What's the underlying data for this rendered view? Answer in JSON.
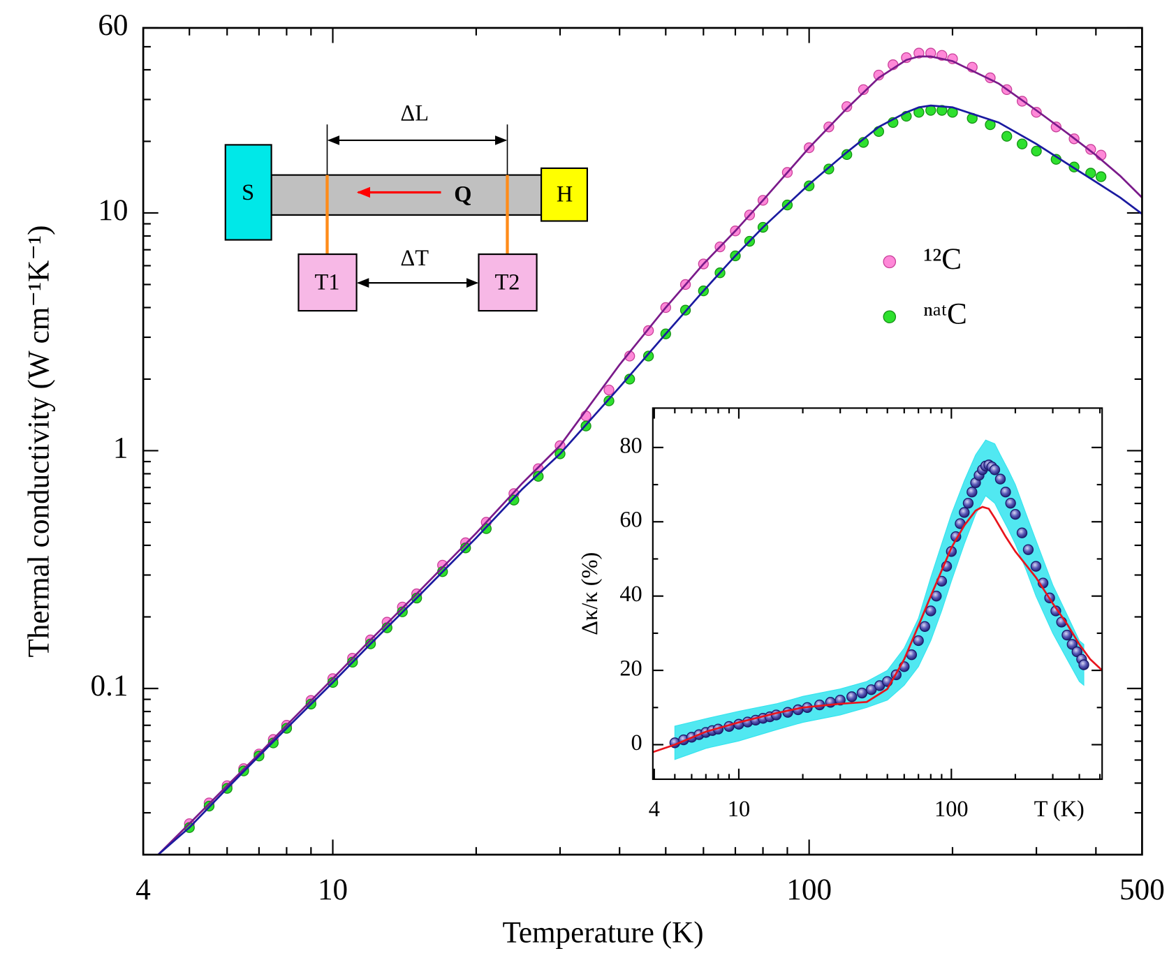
{
  "chart_data": [
    {
      "type": "scatter",
      "xlabel": "Temperature (K)",
      "ylabel": "Thermal conductivity (W cm⁻¹K⁻¹)",
      "xscale": "log",
      "yscale": "log",
      "xlim": [
        4,
        500
      ],
      "ylim": [
        0.02,
        60
      ],
      "xticks": [
        4,
        10,
        100,
        500
      ],
      "xminorticks": [
        5,
        6,
        7,
        8,
        9,
        20,
        30,
        40,
        50,
        60,
        70,
        80,
        90,
        200,
        300,
        400
      ],
      "yticks": [
        0.1,
        1,
        10,
        60
      ],
      "yminorticks": [
        0.03,
        0.04,
        0.05,
        0.06,
        0.07,
        0.08,
        0.09,
        0.2,
        0.3,
        0.4,
        0.5,
        0.6,
        0.7,
        0.8,
        0.9,
        2,
        3,
        4,
        5,
        6,
        7,
        8,
        9,
        20,
        30,
        40,
        50
      ],
      "legend": "upper right",
      "series": [
        {
          "name": "¹²C",
          "kind": "markers",
          "color": "#ff88d8",
          "edge": "#c8409a",
          "x": [
            5,
            5.5,
            6,
            6.5,
            7,
            7.5,
            8,
            9,
            10,
            11,
            12,
            13,
            14,
            15,
            17,
            19,
            21,
            24,
            27,
            30,
            34,
            38,
            42,
            46,
            50,
            55,
            60,
            65,
            70,
            75,
            80,
            90,
            100,
            110,
            120,
            130,
            140,
            150,
            160,
            170,
            180,
            190,
            200,
            220,
            240,
            260,
            280,
            300,
            330,
            360,
            390,
            410
          ],
          "values": [
            0.027,
            0.033,
            0.039,
            0.046,
            0.053,
            0.061,
            0.07,
            0.089,
            0.11,
            0.134,
            0.16,
            0.19,
            0.22,
            0.25,
            0.33,
            0.41,
            0.5,
            0.66,
            0.84,
            1.05,
            1.4,
            1.8,
            2.5,
            3.2,
            4.0,
            5.0,
            6.1,
            7.2,
            8.4,
            9.8,
            11.3,
            14.8,
            18.8,
            23,
            28,
            33,
            38,
            42,
            45,
            47,
            47,
            46,
            44.5,
            41,
            37,
            33,
            29.5,
            26.5,
            23,
            20.5,
            18.5,
            17.5
          ]
        },
        {
          "name": "ⁿᵃᵗC",
          "kind": "markers",
          "color": "#2ee02e",
          "edge": "#149014",
          "x": [
            5,
            5.5,
            6,
            6.5,
            7,
            7.5,
            8,
            9,
            10,
            11,
            12,
            13,
            14,
            15,
            17,
            19,
            21,
            24,
            27,
            30,
            34,
            38,
            42,
            46,
            50,
            55,
            60,
            65,
            70,
            75,
            80,
            90,
            100,
            110,
            120,
            130,
            140,
            150,
            160,
            170,
            180,
            190,
            200,
            220,
            240,
            260,
            280,
            300,
            330,
            360,
            390,
            410
          ],
          "values": [
            0.026,
            0.032,
            0.038,
            0.045,
            0.052,
            0.059,
            0.068,
            0.086,
            0.106,
            0.129,
            0.154,
            0.18,
            0.21,
            0.24,
            0.31,
            0.39,
            0.47,
            0.62,
            0.78,
            0.97,
            1.27,
            1.62,
            2.0,
            2.5,
            3.1,
            3.9,
            4.7,
            5.6,
            6.6,
            7.6,
            8.7,
            10.8,
            13,
            15.3,
            17.6,
            19.8,
            22,
            24,
            25.5,
            26.5,
            27,
            27,
            26.5,
            25,
            23.5,
            21,
            19.5,
            18.2,
            16.8,
            15.6,
            14.7,
            14.2
          ]
        },
        {
          "kind": "line",
          "color": "#7a1a8a",
          "x": [
            4.3,
            5,
            6,
            7,
            8,
            10,
            12,
            15,
            20,
            25,
            30,
            40,
            50,
            60,
            70,
            80,
            100,
            120,
            140,
            160,
            170,
            180,
            200,
            250,
            300,
            350,
            400,
            450,
            500
          ],
          "values": [
            0.02,
            0.027,
            0.039,
            0.053,
            0.07,
            0.11,
            0.16,
            0.25,
            0.45,
            0.73,
            1.05,
            2.3,
            4.0,
            6.1,
            8.4,
            11.3,
            18.8,
            27.5,
            37,
            44,
            45.5,
            45.5,
            43.5,
            35,
            27,
            21.5,
            17.5,
            14.3,
            11.6
          ]
        },
        {
          "kind": "line",
          "color": "#1a1aa0",
          "x": [
            4.3,
            5,
            6,
            7,
            8,
            10,
            12,
            15,
            20,
            25,
            30,
            40,
            50,
            60,
            70,
            80,
            100,
            120,
            140,
            160,
            170,
            180,
            200,
            250,
            300,
            350,
            400,
            450,
            500
          ],
          "values": [
            0.02,
            0.026,
            0.038,
            0.052,
            0.068,
            0.106,
            0.154,
            0.24,
            0.43,
            0.69,
            0.97,
            1.85,
            3.1,
            4.7,
            6.6,
            8.7,
            13.2,
            18,
            23,
            26.5,
            27.8,
            28.3,
            27.8,
            24,
            19.5,
            16,
            13.5,
            11.6,
            9.9
          ]
        }
      ]
    },
    {
      "type": "scatter",
      "xlabel": "T (K)",
      "ylabel": "Δκ/κ (%)",
      "xscale": "log",
      "xlim": [
        3.94,
        512
      ],
      "ylim": [
        -9.3,
        90.6
      ],
      "xticks": [
        4,
        10,
        100
      ],
      "xminorticks": [
        5,
        6,
        7,
        8,
        9,
        20,
        30,
        40,
        50,
        60,
        70,
        80,
        90,
        200,
        300,
        400,
        500
      ],
      "yticks": [
        0,
        20,
        40,
        60,
        80
      ],
      "yminorticks": [
        10,
        30,
        50,
        70
      ],
      "series": [
        {
          "kind": "band",
          "color": "#33e4ee",
          "x": [
            5,
            7,
            10,
            15,
            20,
            30,
            40,
            50,
            60,
            70,
            80,
            90,
            100,
            115,
            130,
            145,
            160,
            170,
            185,
            200,
            225,
            250,
            300,
            350,
            400,
            420
          ],
          "values": [
            5,
            7,
            9,
            11,
            13,
            15,
            17,
            20,
            26,
            34,
            45,
            54,
            62,
            71,
            78,
            82,
            81,
            78,
            74,
            70,
            62,
            55,
            43,
            35,
            28,
            27
          ],
          "lower": [
            -4,
            -1,
            1,
            4,
            6,
            8,
            10,
            12,
            16,
            21,
            28,
            36,
            44,
            54,
            62,
            67,
            65,
            62,
            58,
            54,
            47,
            40,
            30,
            23,
            17,
            16
          ]
        },
        {
          "kind": "markers",
          "color": "#3434a8",
          "edge": "#1a1a6a",
          "x": [
            5,
            5.5,
            6,
            6.5,
            7,
            7.5,
            8,
            9,
            10,
            11,
            12,
            13,
            14,
            15,
            17,
            19,
            21,
            24,
            27,
            30,
            34,
            38,
            42,
            46,
            50,
            55,
            60,
            65,
            70,
            75,
            80,
            85,
            90,
            95,
            100,
            105,
            110,
            115,
            120,
            125,
            130,
            135,
            140,
            145,
            150,
            155,
            160,
            170,
            180,
            190,
            200,
            215,
            230,
            250,
            270,
            290,
            310,
            330,
            350,
            370,
            390,
            410,
            420
          ],
          "values": [
            0.5,
            1.3,
            2,
            2.7,
            3.3,
            3.8,
            4.2,
            4.9,
            5.5,
            6.1,
            6.6,
            7.1,
            7.5,
            8,
            8.7,
            9.4,
            10,
            10.7,
            11.4,
            12,
            12.9,
            13.9,
            14.8,
            15.9,
            17,
            18.8,
            21,
            24.2,
            28,
            31.8,
            36,
            40,
            44,
            48,
            52,
            56,
            59.5,
            62.5,
            65,
            68,
            70.5,
            72.5,
            74,
            75,
            75.3,
            74.8,
            74,
            71.5,
            68,
            65,
            62,
            57,
            52.5,
            48,
            43.5,
            39.5,
            36,
            33,
            29.5,
            27,
            25,
            23,
            21.5
          ]
        },
        {
          "kind": "line",
          "color": "#e8141c",
          "x": [
            3.94,
            5,
            7,
            10,
            15,
            20,
            30,
            40,
            50,
            60,
            70,
            80,
            100,
            115,
            130,
            140,
            150,
            160,
            180,
            200,
            250,
            300,
            350,
            400,
            450,
            512
          ],
          "values": [
            -2,
            0,
            3.5,
            6,
            8.5,
            10,
            11,
            11.5,
            15,
            23,
            32,
            40,
            53,
            59,
            63,
            64,
            63.5,
            61,
            56,
            52,
            45,
            38,
            32.5,
            27,
            23,
            20
          ]
        }
      ]
    }
  ],
  "diagram": {
    "source": "S",
    "heater": "H",
    "heat_flow": "Q",
    "thermometer_1": "T1",
    "thermometer_2": "T2",
    "length": "ΔL",
    "temperature_difference": "ΔT"
  }
}
